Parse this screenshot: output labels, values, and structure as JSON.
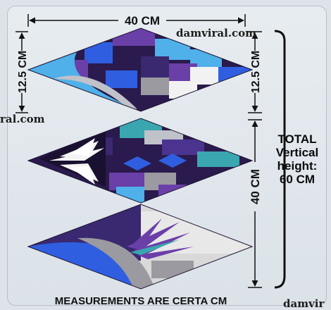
{
  "labels": {
    "top_width": "40 CM",
    "left_height": "12.5 CM",
    "right_height_upper": "12.5 CM",
    "right_height_lower": "40 CM",
    "total_lines": [
      "TOTAL",
      "Vertical",
      "height:",
      "60 CM"
    ],
    "footer": "MEASUREMENTS ARE CERTA CM"
  },
  "watermarks": {
    "top_right": "damviral.com",
    "left": "ral.com",
    "bottom_right": "damvir"
  },
  "colors": {
    "background": "#dde3e8",
    "deep_purple": "#2a1a4d",
    "purple": "#6b3fa8",
    "royal_blue": "#2f5fe0",
    "sky_blue": "#4fb0ea",
    "teal": "#3aa6b0",
    "gray": "#9a9aa0",
    "white": "#f2f2f2",
    "arrow": "#111111"
  }
}
